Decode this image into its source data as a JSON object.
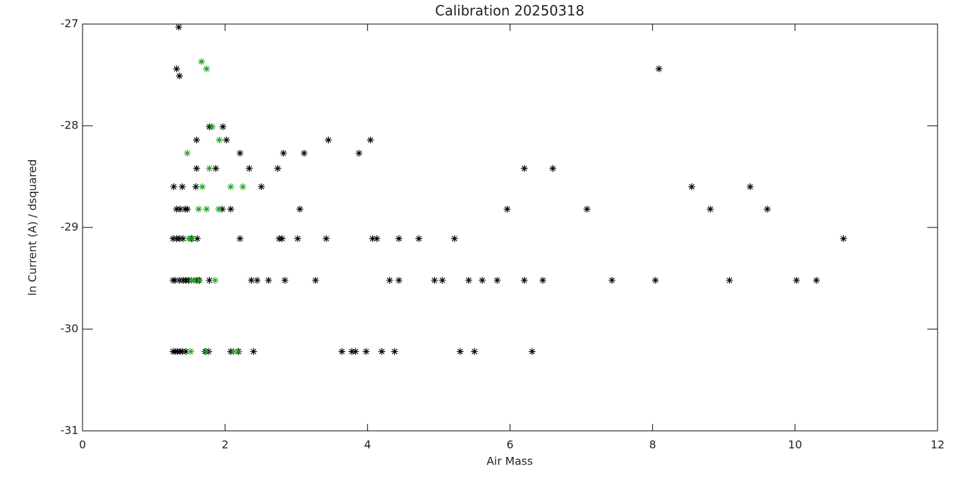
{
  "chart_data": {
    "type": "scatter",
    "title": "Calibration 20250318",
    "x_label": "Air Mass",
    "y_label": "ln Current (A) / dsquared",
    "xlim": [
      0,
      12
    ],
    "xticks": [
      0,
      2,
      4,
      6,
      8,
      10,
      12
    ],
    "ylim": [
      -31,
      -27
    ],
    "yticks": [
      -31,
      -30,
      -29,
      -28,
      -27
    ],
    "series": [
      {
        "color": "#000000",
        "x": [
          1.27,
          1.3,
          1.33,
          1.37,
          1.4,
          1.45,
          1.72,
          1.77,
          2.08,
          2.19,
          2.4,
          3.64,
          3.78,
          3.83,
          3.98,
          4.2,
          4.38,
          5.3,
          5.5,
          6.31,
          1.27,
          1.3,
          1.36,
          1.41,
          1.45,
          1.49,
          1.6,
          1.64,
          1.78,
          2.37,
          2.45,
          2.61,
          2.84,
          3.27,
          4.31,
          4.44,
          4.94,
          5.05,
          5.42,
          5.61,
          5.82,
          6.2,
          6.46,
          7.43,
          8.04,
          9.08,
          10.02,
          10.3,
          1.27,
          1.32,
          1.36,
          1.41,
          1.53,
          1.61,
          2.21,
          2.76,
          2.8,
          3.02,
          3.42,
          4.07,
          4.13,
          4.44,
          4.72,
          5.22,
          10.68,
          1.32,
          1.37,
          1.44,
          1.47,
          1.96,
          2.08,
          3.05,
          5.96,
          7.08,
          8.81,
          9.61,
          1.28,
          1.4,
          1.59,
          2.51,
          8.55,
          9.37,
          1.6,
          1.87,
          2.34,
          2.74,
          6.2,
          6.6,
          2.21,
          2.82,
          3.11,
          3.88,
          1.6,
          2.02,
          3.45,
          4.04,
          1.78,
          1.97,
          1.35,
          1.32,
          1.36,
          8.09
        ],
        "values": [
          -30.22,
          -30.22,
          -30.22,
          -30.22,
          -30.22,
          -30.22,
          -30.22,
          -30.22,
          -30.22,
          -30.22,
          -30.22,
          -30.22,
          -30.22,
          -30.22,
          -30.22,
          -30.22,
          -30.22,
          -30.22,
          -30.22,
          -30.22,
          -29.52,
          -29.52,
          -29.52,
          -29.52,
          -29.52,
          -29.52,
          -29.52,
          -29.52,
          -29.52,
          -29.52,
          -29.52,
          -29.52,
          -29.52,
          -29.52,
          -29.52,
          -29.52,
          -29.52,
          -29.52,
          -29.52,
          -29.52,
          -29.52,
          -29.52,
          -29.52,
          -29.52,
          -29.52,
          -29.52,
          -29.52,
          -29.52,
          -29.11,
          -29.11,
          -29.11,
          -29.11,
          -29.11,
          -29.11,
          -29.11,
          -29.11,
          -29.11,
          -29.11,
          -29.11,
          -29.11,
          -29.11,
          -29.11,
          -29.11,
          -29.11,
          -29.11,
          -28.82,
          -28.82,
          -28.82,
          -28.82,
          -28.82,
          -28.82,
          -28.82,
          -28.82,
          -28.82,
          -28.82,
          -28.82,
          -28.6,
          -28.6,
          -28.6,
          -28.6,
          -28.6,
          -28.6,
          -28.42,
          -28.42,
          -28.42,
          -28.42,
          -28.42,
          -28.42,
          -28.27,
          -28.27,
          -28.27,
          -28.27,
          -28.14,
          -28.14,
          -28.14,
          -28.14,
          -28.01,
          -28.01,
          -27.03,
          -27.44,
          -27.51,
          -27.44
        ]
      },
      {
        "color": "#22a022",
        "x": [
          1.52,
          1.74,
          2.12,
          2.18,
          1.53,
          1.56,
          1.63,
          1.86,
          1.49,
          1.54,
          1.63,
          1.74,
          1.91,
          1.68,
          2.08,
          2.25,
          1.78,
          1.47,
          1.92,
          1.82,
          1.67,
          1.74
        ],
        "values": [
          -30.22,
          -30.22,
          -30.22,
          -30.22,
          -29.52,
          -29.52,
          -29.52,
          -29.52,
          -29.11,
          -29.11,
          -28.82,
          -28.82,
          -28.82,
          -28.6,
          -28.6,
          -28.6,
          -28.42,
          -28.27,
          -28.14,
          -28.01,
          -27.37,
          -27.44
        ]
      }
    ]
  }
}
